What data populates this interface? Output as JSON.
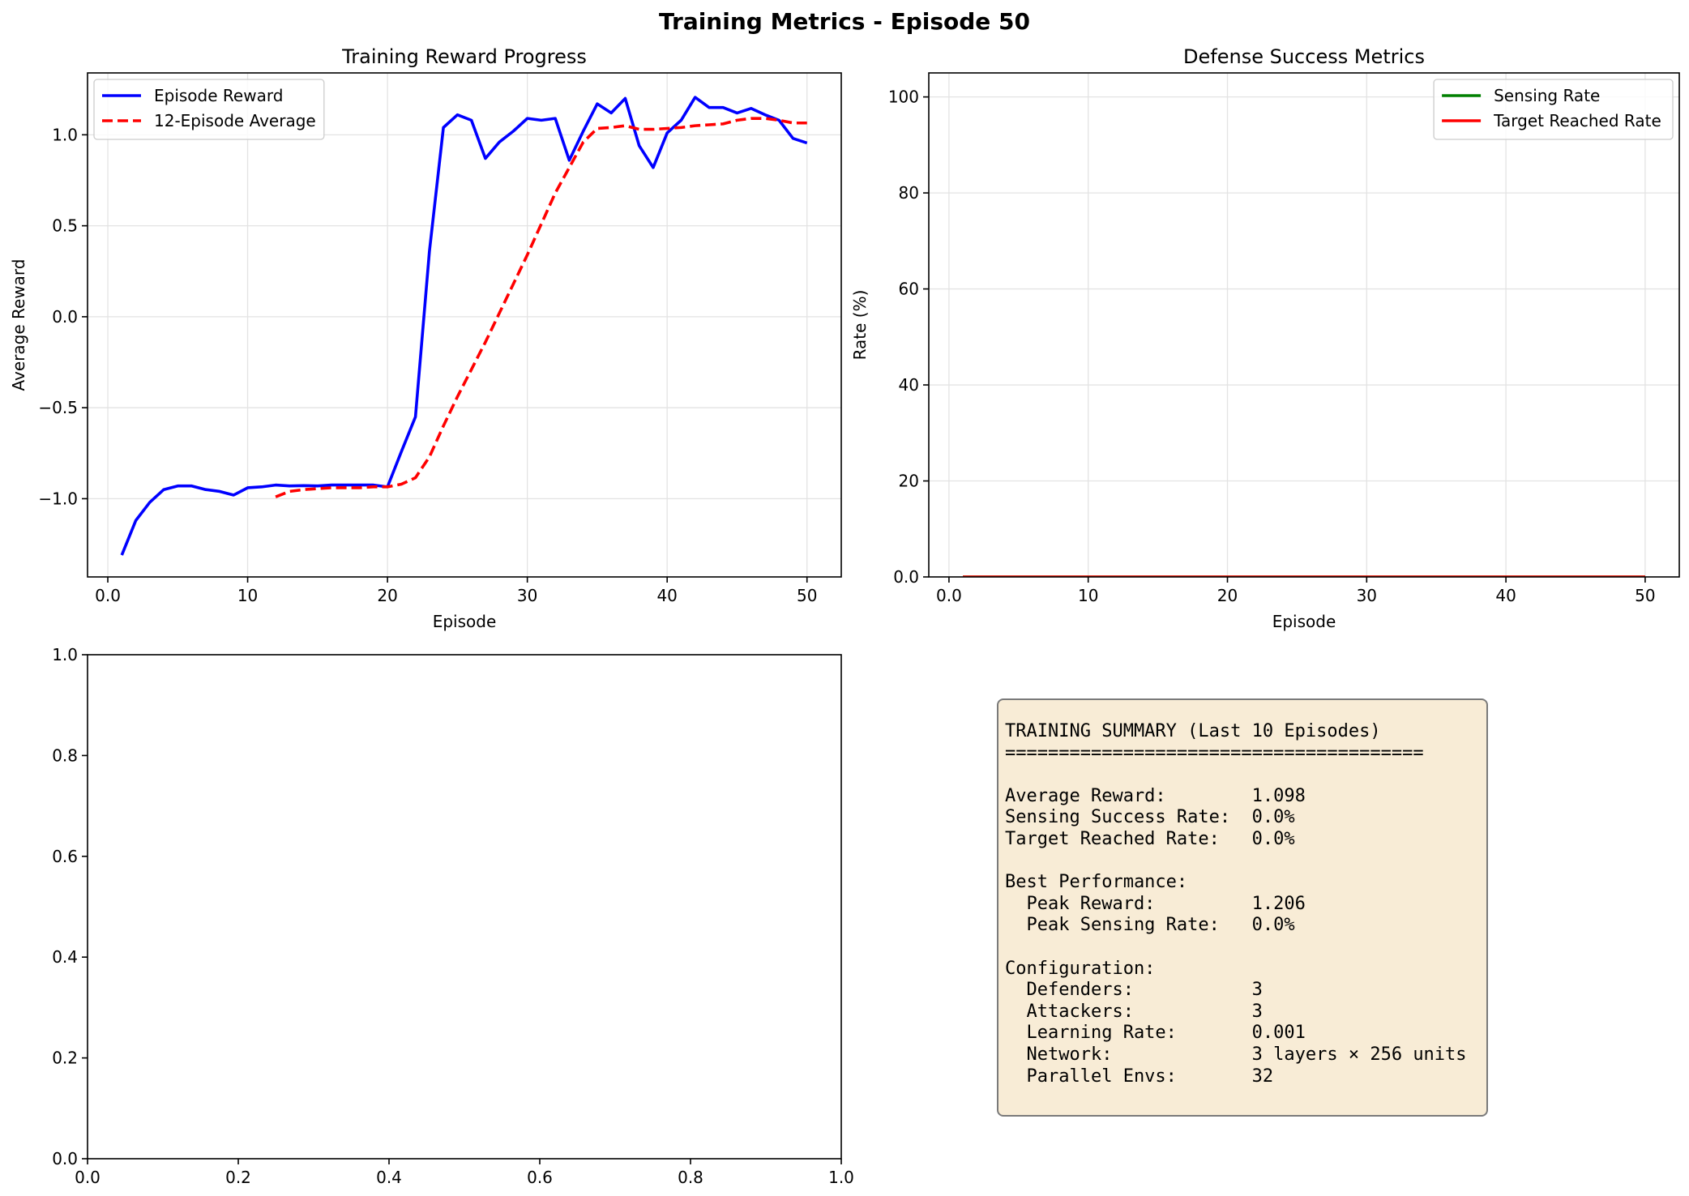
{
  "figure": {
    "suptitle": "Training Metrics - Episode 50"
  },
  "chart_data": [
    {
      "type": "line",
      "title": "Training Reward Progress",
      "xlabel": "Episode",
      "ylabel": "Average Reward",
      "xlim": [
        -1.45,
        52.45
      ],
      "ylim": [
        -1.43,
        1.34
      ],
      "xticks": [
        0,
        10,
        20,
        30,
        40,
        50
      ],
      "yticks": [
        -1.0,
        -0.5,
        0.0,
        0.5,
        1.0
      ],
      "ytick_labels": [
        "−1.0",
        "−0.5",
        "0.0",
        "0.5",
        "1.0"
      ],
      "grid": true,
      "legend_position": "upper-left",
      "series": [
        {
          "name": "Episode Reward",
          "color": "#0000ff",
          "style": "solid",
          "x": [
            1,
            2,
            3,
            4,
            5,
            6,
            7,
            8,
            9,
            10,
            11,
            12,
            13,
            14,
            15,
            16,
            17,
            18,
            19,
            20,
            21,
            22,
            23,
            24,
            25,
            26,
            27,
            28,
            29,
            30,
            31,
            32,
            33,
            34,
            35,
            36,
            37,
            38,
            39,
            40,
            41,
            42,
            43,
            44,
            45,
            46,
            47,
            48,
            49,
            50
          ],
          "y": [
            -1.31,
            -1.12,
            -1.02,
            -0.95,
            -0.93,
            -0.93,
            -0.95,
            -0.96,
            -0.98,
            -0.94,
            -0.935,
            -0.925,
            -0.93,
            -0.928,
            -0.93,
            -0.925,
            -0.925,
            -0.925,
            -0.925,
            -0.935,
            -0.74,
            -0.55,
            0.36,
            1.04,
            1.11,
            1.08,
            0.87,
            0.96,
            1.02,
            1.09,
            1.08,
            1.09,
            0.86,
            1.02,
            1.17,
            1.12,
            1.2,
            0.94,
            0.82,
            1.01,
            1.08,
            1.206,
            1.15,
            1.15,
            1.12,
            1.145,
            1.11,
            1.08,
            0.98,
            0.955
          ]
        },
        {
          "name": "12-Episode Average",
          "color": "#ff0000",
          "style": "dashed",
          "x": [
            12,
            13,
            14,
            15,
            16,
            17,
            18,
            19,
            20,
            21,
            22,
            23,
            24,
            25,
            26,
            27,
            28,
            29,
            30,
            31,
            32,
            33,
            34,
            35,
            36,
            37,
            38,
            39,
            40,
            41,
            42,
            43,
            44,
            45,
            46,
            47,
            48,
            49,
            50
          ],
          "y": [
            -0.99,
            -0.96,
            -0.95,
            -0.945,
            -0.94,
            -0.94,
            -0.94,
            -0.935,
            -0.935,
            -0.92,
            -0.885,
            -0.77,
            -0.6,
            -0.44,
            -0.29,
            -0.14,
            0.02,
            0.18,
            0.34,
            0.51,
            0.68,
            0.82,
            0.96,
            1.035,
            1.04,
            1.05,
            1.03,
            1.03,
            1.035,
            1.04,
            1.05,
            1.055,
            1.06,
            1.08,
            1.09,
            1.09,
            1.08,
            1.065,
            1.065
          ]
        }
      ]
    },
    {
      "type": "line",
      "title": "Defense Success Metrics",
      "xlabel": "Episode",
      "ylabel": "Rate (%)",
      "xlim": [
        -1.45,
        52.45
      ],
      "ylim": [
        0,
        105
      ],
      "xticks": [
        0,
        10,
        20,
        30,
        40,
        50
      ],
      "yticks": [
        0,
        20,
        40,
        60,
        80,
        100
      ],
      "grid": true,
      "legend_position": "upper-right",
      "series": [
        {
          "name": "Sensing Rate",
          "color": "#008000",
          "style": "solid",
          "x": [
            1,
            50
          ],
          "y": [
            0,
            0
          ]
        },
        {
          "name": "Target Reached Rate",
          "color": "#ff0000",
          "style": "solid",
          "x": [
            1,
            50
          ],
          "y": [
            0,
            0
          ]
        }
      ]
    },
    {
      "type": "line",
      "title": "",
      "xlabel": "",
      "ylabel": "",
      "xlim": [
        0,
        1
      ],
      "ylim": [
        0,
        1
      ],
      "xticks": [
        0,
        0.2,
        0.4,
        0.6,
        0.8,
        1.0
      ],
      "yticks": [
        0,
        0.2,
        0.4,
        0.6,
        0.8,
        1.0
      ],
      "grid": false,
      "series": []
    }
  ],
  "summary": {
    "lines": [
      "TRAINING SUMMARY (Last 10 Episodes)",
      "=======================================",
      "",
      "Average Reward:        1.098",
      "Sensing Success Rate:  0.0%",
      "Target Reached Rate:   0.0%",
      "",
      "Best Performance:",
      "  Peak Reward:         1.206",
      "  Peak Sensing Rate:   0.0%",
      "",
      "Configuration:",
      "  Defenders:           3",
      "  Attackers:           3",
      "  Learning Rate:       0.001",
      "  Network:             3 layers × 256 units",
      "  Parallel Envs:       32"
    ]
  }
}
